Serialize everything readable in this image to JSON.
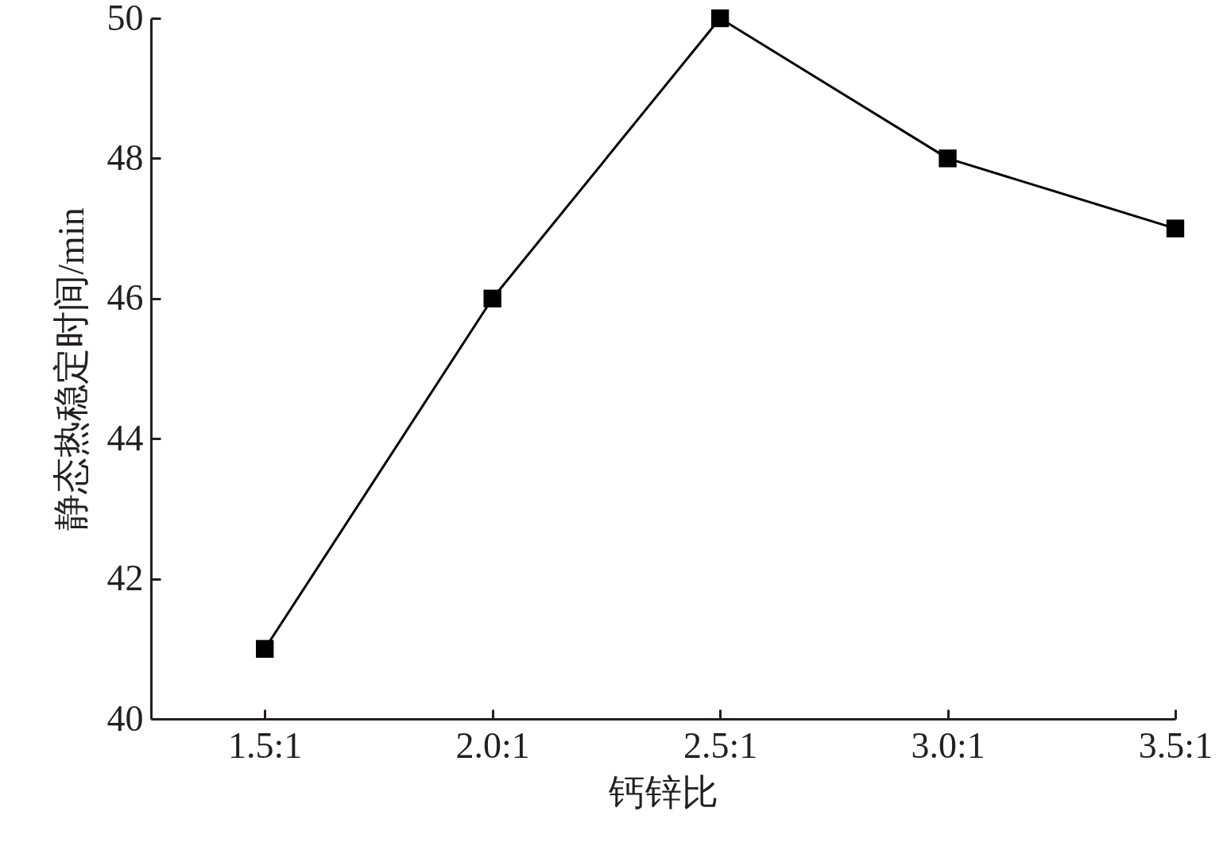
{
  "chart_data": {
    "type": "line",
    "xlabel": "钙锌比",
    "ylabel": "静态热稳定时间/min",
    "categories": [
      "1.5:1",
      "2.0:1",
      "2.5:1",
      "3.0:1",
      "3.5:1"
    ],
    "series": [
      {
        "color": "#000000",
        "values": [
          41,
          46,
          50,
          48,
          47
        ]
      }
    ],
    "ylim": [
      40,
      50
    ],
    "yticks": [
      40,
      42,
      44,
      46,
      48,
      50
    ],
    "grid": false,
    "legend": false,
    "marker": "square",
    "line_style": "solid"
  }
}
